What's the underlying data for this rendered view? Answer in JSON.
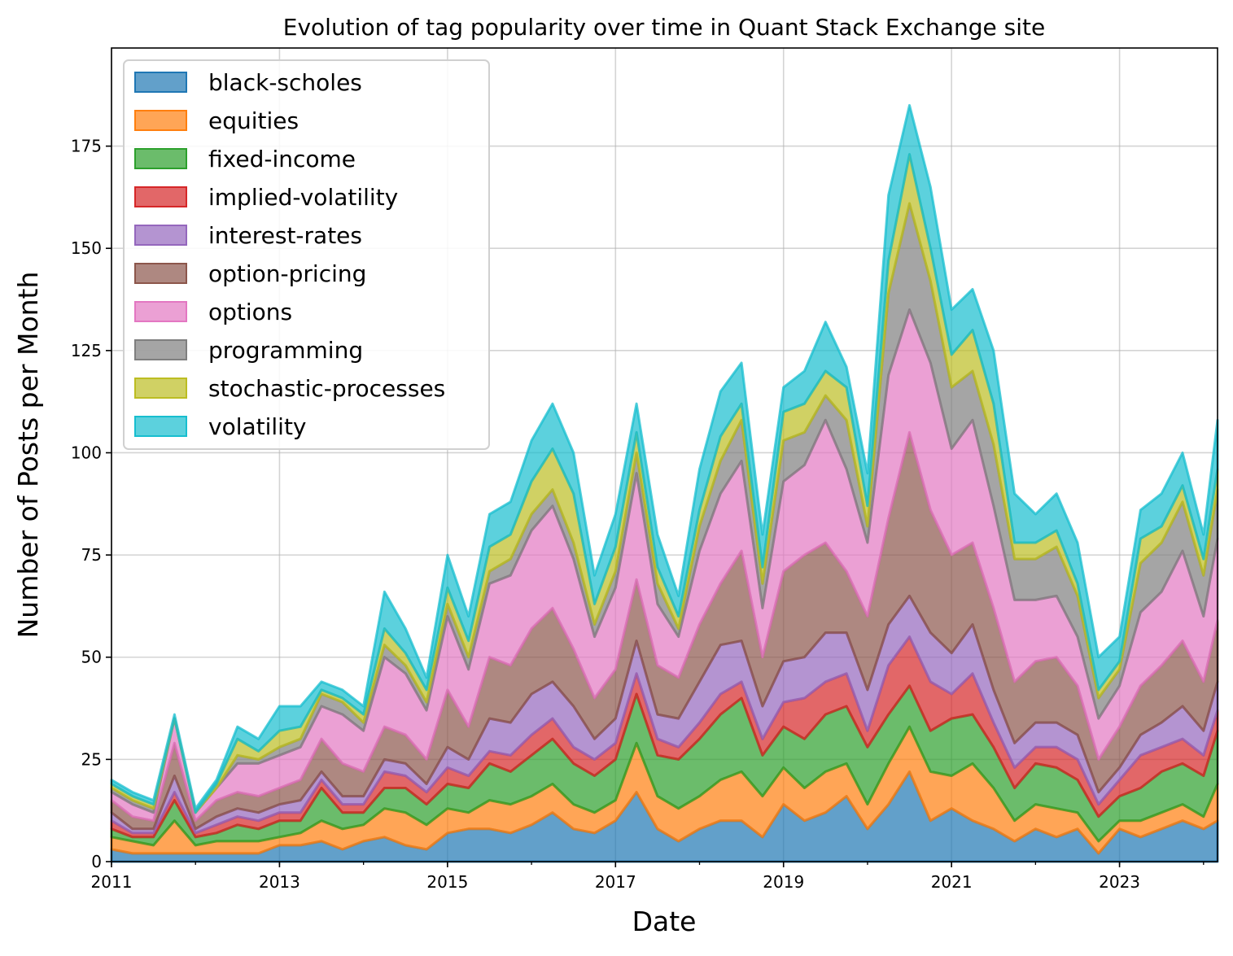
{
  "chart_data": {
    "type": "area",
    "stacked": true,
    "title": "Evolution of tag popularity over time in Quant Stack Exchange site",
    "xlabel": "Date",
    "ylabel": "Number of Posts per Month",
    "ylim": [
      0,
      199
    ],
    "xlim": [
      "2011-01",
      "2024-03"
    ],
    "grid": true,
    "legend_position": "top-left",
    "x_ticks": [
      "2011",
      "2013",
      "2015",
      "2017",
      "2019",
      "2021",
      "2023"
    ],
    "y_ticks": [
      0,
      25,
      50,
      75,
      100,
      125,
      150,
      175
    ],
    "x": [
      "2011-01",
      "2011-04",
      "2011-07",
      "2011-10",
      "2012-01",
      "2012-04",
      "2012-07",
      "2012-10",
      "2013-01",
      "2013-04",
      "2013-07",
      "2013-10",
      "2014-01",
      "2014-04",
      "2014-07",
      "2014-10",
      "2015-01",
      "2015-04",
      "2015-07",
      "2015-10",
      "2016-01",
      "2016-04",
      "2016-07",
      "2016-10",
      "2017-01",
      "2017-04",
      "2017-07",
      "2017-10",
      "2018-01",
      "2018-04",
      "2018-07",
      "2018-10",
      "2019-01",
      "2019-04",
      "2019-07",
      "2019-10",
      "2020-01",
      "2020-04",
      "2020-07",
      "2020-10",
      "2021-01",
      "2021-04",
      "2021-07",
      "2021-10",
      "2022-01",
      "2022-04",
      "2022-07",
      "2022-10",
      "2023-01",
      "2023-04",
      "2023-07",
      "2023-10",
      "2024-01",
      "2024-03"
    ],
    "series": [
      {
        "name": "black-scholes",
        "color": "#1f77b4",
        "values": [
          3,
          2,
          2,
          2,
          2,
          2,
          2,
          2,
          4,
          4,
          5,
          3,
          5,
          6,
          4,
          3,
          7,
          8,
          8,
          7,
          9,
          12,
          8,
          7,
          10,
          17,
          8,
          5,
          8,
          10,
          10,
          6,
          14,
          10,
          12,
          16,
          8,
          14,
          22,
          10,
          13,
          10,
          8,
          5,
          8,
          6,
          8,
          2,
          8,
          6,
          8,
          10,
          8,
          10
        ]
      },
      {
        "name": "equities",
        "color": "#ff7f0e",
        "values": [
          3,
          3,
          2,
          8,
          2,
          3,
          3,
          3,
          2,
          3,
          5,
          5,
          4,
          7,
          8,
          6,
          6,
          4,
          7,
          7,
          7,
          7,
          6,
          5,
          5,
          12,
          8,
          8,
          8,
          10,
          12,
          10,
          9,
          8,
          10,
          8,
          6,
          10,
          11,
          12,
          8,
          14,
          10,
          5,
          6,
          7,
          4,
          3,
          2,
          4,
          4,
          4,
          3,
          9
        ]
      },
      {
        "name": "fixed-income",
        "color": "#2ca02c",
        "values": [
          2,
          1,
          2,
          5,
          2,
          2,
          4,
          3,
          4,
          3,
          8,
          4,
          3,
          5,
          6,
          5,
          6,
          6,
          9,
          8,
          10,
          11,
          10,
          9,
          10,
          12,
          10,
          12,
          14,
          16,
          18,
          10,
          10,
          12,
          14,
          14,
          14,
          12,
          10,
          10,
          14,
          12,
          10,
          8,
          10,
          10,
          8,
          6,
          6,
          8,
          10,
          10,
          10,
          13
        ]
      },
      {
        "name": "implied-volatility",
        "color": "#d62728",
        "values": [
          2,
          1,
          1,
          2,
          1,
          2,
          2,
          2,
          2,
          2,
          2,
          2,
          2,
          4,
          3,
          3,
          4,
          3,
          3,
          4,
          5,
          5,
          4,
          4,
          4,
          5,
          4,
          3,
          4,
          5,
          4,
          4,
          6,
          10,
          8,
          8,
          4,
          12,
          12,
          12,
          6,
          10,
          6,
          5,
          4,
          5,
          5,
          3,
          4,
          8,
          6,
          6,
          5,
          5
        ]
      },
      {
        "name": "interest-rates",
        "color": "#9467bd",
        "values": [
          2,
          1,
          1,
          4,
          1,
          2,
          2,
          2,
          2,
          3,
          2,
          2,
          2,
          3,
          3,
          2,
          5,
          4,
          8,
          8,
          10,
          9,
          10,
          5,
          6,
          8,
          6,
          7,
          10,
          12,
          10,
          8,
          10,
          10,
          12,
          10,
          10,
          10,
          10,
          12,
          10,
          12,
          8,
          6,
          6,
          6,
          6,
          3,
          3,
          5,
          6,
          8,
          6,
          7
        ]
      },
      {
        "name": "option-pricing",
        "color": "#8c564b",
        "values": [
          3,
          3,
          2,
          8,
          2,
          4,
          4,
          4,
          4,
          5,
          8,
          8,
          6,
          8,
          7,
          6,
          14,
          8,
          15,
          14,
          16,
          18,
          14,
          10,
          12,
          15,
          12,
          10,
          14,
          15,
          22,
          12,
          22,
          25,
          22,
          15,
          18,
          26,
          40,
          30,
          24,
          20,
          20,
          15,
          15,
          16,
          12,
          8,
          10,
          12,
          14,
          16,
          12,
          15
        ]
      },
      {
        "name": "options",
        "color": "#e377c2",
        "values": [
          2,
          3,
          2,
          6,
          2,
          3,
          7,
          8,
          8,
          8,
          8,
          12,
          10,
          17,
          15,
          12,
          18,
          14,
          18,
          22,
          24,
          25,
          22,
          15,
          20,
          26,
          15,
          10,
          18,
          22,
          22,
          12,
          22,
          22,
          30,
          25,
          18,
          35,
          30,
          36,
          26,
          30,
          25,
          20,
          15,
          15,
          12,
          10,
          10,
          18,
          18,
          22,
          16,
          20
        ]
      },
      {
        "name": "programming",
        "color": "#7f7f7f",
        "values": [
          1,
          1,
          1,
          0,
          0,
          0,
          2,
          1,
          2,
          2,
          3,
          3,
          2,
          3,
          2,
          2,
          3,
          3,
          3,
          4,
          4,
          4,
          4,
          3,
          4,
          5,
          5,
          2,
          6,
          8,
          10,
          6,
          10,
          8,
          6,
          12,
          4,
          20,
          26,
          20,
          15,
          12,
          15,
          10,
          10,
          12,
          10,
          5,
          4,
          12,
          12,
          12,
          10,
          12
        ]
      },
      {
        "name": "stochastic-processes",
        "color": "#bcbd22",
        "values": [
          1,
          1,
          1,
          0,
          0,
          1,
          4,
          2,
          4,
          3,
          1,
          1,
          2,
          4,
          3,
          3,
          4,
          4,
          6,
          6,
          8,
          10,
          12,
          5,
          6,
          5,
          4,
          3,
          4,
          6,
          4,
          4,
          7,
          7,
          6,
          8,
          5,
          8,
          12,
          8,
          8,
          10,
          10,
          4,
          4,
          4,
          3,
          2,
          2,
          6,
          4,
          4,
          4,
          5
        ]
      },
      {
        "name": "volatility",
        "color": "#17becf",
        "values": [
          1,
          1,
          1,
          1,
          1,
          1,
          3,
          3,
          6,
          5,
          2,
          2,
          2,
          9,
          6,
          3,
          8,
          6,
          8,
          8,
          10,
          11,
          10,
          7,
          8,
          7,
          8,
          5,
          10,
          11,
          10,
          8,
          6,
          8,
          12,
          5,
          8,
          16,
          12,
          15,
          11,
          10,
          13,
          12,
          7,
          9,
          10,
          8,
          6,
          7,
          8,
          8,
          6,
          12
        ]
      }
    ]
  }
}
